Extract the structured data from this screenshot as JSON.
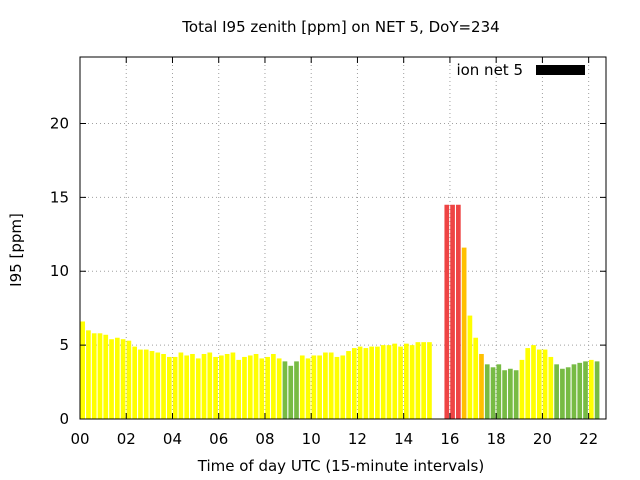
{
  "chart_data": {
    "type": "bar",
    "title": "Total I95 zenith [ppm] on NET 5, DoY=234",
    "xlabel": "Time of day UTC (15-minute intervals)",
    "ylabel": "I95 [ppm]",
    "xlim": [
      0,
      22.75
    ],
    "ylim": [
      0,
      24.5
    ],
    "x_ticks": [
      0,
      2,
      4,
      6,
      8,
      10,
      12,
      14,
      16,
      18,
      20,
      22
    ],
    "x_tick_labels": [
      "00",
      "02",
      "04",
      "06",
      "08",
      "10",
      "12",
      "14",
      "16",
      "18",
      "20",
      "22"
    ],
    "y_ticks": [
      0,
      5,
      10,
      15,
      20
    ],
    "y_tick_labels": [
      "0",
      "5",
      "10",
      "15",
      "20"
    ],
    "grid": true,
    "legend": {
      "label": "ion net 5",
      "color": "#000000",
      "placement": "top-right"
    },
    "colors": {
      "yellow": "#ffff00",
      "orange": "#ffc000",
      "green": "#77bb44",
      "red": "#ee4444"
    },
    "bars": [
      {
        "x": 0.0,
        "y": 6.6,
        "c": "yellow"
      },
      {
        "x": 0.25,
        "y": 6.0,
        "c": "yellow"
      },
      {
        "x": 0.5,
        "y": 5.8,
        "c": "yellow"
      },
      {
        "x": 0.75,
        "y": 5.8,
        "c": "yellow"
      },
      {
        "x": 1.0,
        "y": 5.7,
        "c": "yellow"
      },
      {
        "x": 1.25,
        "y": 5.4,
        "c": "yellow"
      },
      {
        "x": 1.5,
        "y": 5.5,
        "c": "yellow"
      },
      {
        "x": 1.75,
        "y": 5.4,
        "c": "yellow"
      },
      {
        "x": 2.0,
        "y": 5.3,
        "c": "yellow"
      },
      {
        "x": 2.25,
        "y": 4.9,
        "c": "yellow"
      },
      {
        "x": 2.5,
        "y": 4.7,
        "c": "yellow"
      },
      {
        "x": 2.75,
        "y": 4.7,
        "c": "yellow"
      },
      {
        "x": 3.0,
        "y": 4.6,
        "c": "yellow"
      },
      {
        "x": 3.25,
        "y": 4.5,
        "c": "yellow"
      },
      {
        "x": 3.5,
        "y": 4.4,
        "c": "yellow"
      },
      {
        "x": 3.75,
        "y": 4.2,
        "c": "yellow"
      },
      {
        "x": 4.0,
        "y": 4.2,
        "c": "yellow"
      },
      {
        "x": 4.25,
        "y": 4.5,
        "c": "yellow"
      },
      {
        "x": 4.5,
        "y": 4.3,
        "c": "yellow"
      },
      {
        "x": 4.75,
        "y": 4.4,
        "c": "yellow"
      },
      {
        "x": 5.0,
        "y": 4.1,
        "c": "yellow"
      },
      {
        "x": 5.25,
        "y": 4.4,
        "c": "yellow"
      },
      {
        "x": 5.5,
        "y": 4.5,
        "c": "yellow"
      },
      {
        "x": 5.75,
        "y": 4.2,
        "c": "yellow"
      },
      {
        "x": 6.0,
        "y": 4.3,
        "c": "yellow"
      },
      {
        "x": 6.25,
        "y": 4.4,
        "c": "yellow"
      },
      {
        "x": 6.5,
        "y": 4.5,
        "c": "yellow"
      },
      {
        "x": 6.75,
        "y": 4.0,
        "c": "yellow"
      },
      {
        "x": 7.0,
        "y": 4.2,
        "c": "yellow"
      },
      {
        "x": 7.25,
        "y": 4.3,
        "c": "yellow"
      },
      {
        "x": 7.5,
        "y": 4.4,
        "c": "yellow"
      },
      {
        "x": 7.75,
        "y": 4.1,
        "c": "yellow"
      },
      {
        "x": 8.0,
        "y": 4.2,
        "c": "yellow"
      },
      {
        "x": 8.25,
        "y": 4.4,
        "c": "yellow"
      },
      {
        "x": 8.5,
        "y": 4.1,
        "c": "yellow"
      },
      {
        "x": 8.75,
        "y": 3.9,
        "c": "green"
      },
      {
        "x": 9.0,
        "y": 3.6,
        "c": "green"
      },
      {
        "x": 9.25,
        "y": 3.9,
        "c": "green"
      },
      {
        "x": 9.5,
        "y": 4.3,
        "c": "yellow"
      },
      {
        "x": 9.75,
        "y": 4.1,
        "c": "yellow"
      },
      {
        "x": 10.0,
        "y": 4.3,
        "c": "yellow"
      },
      {
        "x": 10.25,
        "y": 4.3,
        "c": "yellow"
      },
      {
        "x": 10.5,
        "y": 4.5,
        "c": "yellow"
      },
      {
        "x": 10.75,
        "y": 4.5,
        "c": "yellow"
      },
      {
        "x": 11.0,
        "y": 4.2,
        "c": "yellow"
      },
      {
        "x": 11.25,
        "y": 4.3,
        "c": "yellow"
      },
      {
        "x": 11.5,
        "y": 4.6,
        "c": "yellow"
      },
      {
        "x": 11.75,
        "y": 4.8,
        "c": "yellow"
      },
      {
        "x": 12.0,
        "y": 4.9,
        "c": "yellow"
      },
      {
        "x": 12.25,
        "y": 4.8,
        "c": "yellow"
      },
      {
        "x": 12.5,
        "y": 4.9,
        "c": "yellow"
      },
      {
        "x": 12.75,
        "y": 4.9,
        "c": "yellow"
      },
      {
        "x": 13.0,
        "y": 5.0,
        "c": "yellow"
      },
      {
        "x": 13.25,
        "y": 5.0,
        "c": "yellow"
      },
      {
        "x": 13.5,
        "y": 5.1,
        "c": "yellow"
      },
      {
        "x": 13.75,
        "y": 4.9,
        "c": "yellow"
      },
      {
        "x": 14.0,
        "y": 5.1,
        "c": "yellow"
      },
      {
        "x": 14.25,
        "y": 5.0,
        "c": "yellow"
      },
      {
        "x": 14.5,
        "y": 5.2,
        "c": "yellow"
      },
      {
        "x": 14.75,
        "y": 5.2,
        "c": "yellow"
      },
      {
        "x": 15.0,
        "y": 5.2,
        "c": "yellow"
      },
      {
        "x": 15.75,
        "y": 14.5,
        "c": "red"
      },
      {
        "x": 16.0,
        "y": 14.5,
        "c": "red"
      },
      {
        "x": 16.25,
        "y": 14.5,
        "c": "red"
      },
      {
        "x": 16.5,
        "y": 11.6,
        "c": "orange"
      },
      {
        "x": 16.75,
        "y": 7.0,
        "c": "yellow"
      },
      {
        "x": 17.0,
        "y": 5.5,
        "c": "yellow"
      },
      {
        "x": 17.25,
        "y": 4.4,
        "c": "orange"
      },
      {
        "x": 17.5,
        "y": 3.7,
        "c": "green"
      },
      {
        "x": 17.75,
        "y": 3.5,
        "c": "green"
      },
      {
        "x": 18.0,
        "y": 3.7,
        "c": "green"
      },
      {
        "x": 18.25,
        "y": 3.3,
        "c": "green"
      },
      {
        "x": 18.5,
        "y": 3.4,
        "c": "green"
      },
      {
        "x": 18.75,
        "y": 3.3,
        "c": "green"
      },
      {
        "x": 19.0,
        "y": 4.0,
        "c": "yellow"
      },
      {
        "x": 19.25,
        "y": 4.8,
        "c": "yellow"
      },
      {
        "x": 19.5,
        "y": 5.0,
        "c": "yellow"
      },
      {
        "x": 19.75,
        "y": 4.7,
        "c": "yellow"
      },
      {
        "x": 20.0,
        "y": 4.7,
        "c": "yellow"
      },
      {
        "x": 20.25,
        "y": 4.2,
        "c": "yellow"
      },
      {
        "x": 20.5,
        "y": 3.7,
        "c": "green"
      },
      {
        "x": 20.75,
        "y": 3.4,
        "c": "green"
      },
      {
        "x": 21.0,
        "y": 3.5,
        "c": "green"
      },
      {
        "x": 21.25,
        "y": 3.7,
        "c": "green"
      },
      {
        "x": 21.5,
        "y": 3.8,
        "c": "green"
      },
      {
        "x": 21.75,
        "y": 3.9,
        "c": "green"
      },
      {
        "x": 22.0,
        "y": 4.0,
        "c": "yellow"
      },
      {
        "x": 22.25,
        "y": 3.9,
        "c": "green"
      }
    ]
  }
}
